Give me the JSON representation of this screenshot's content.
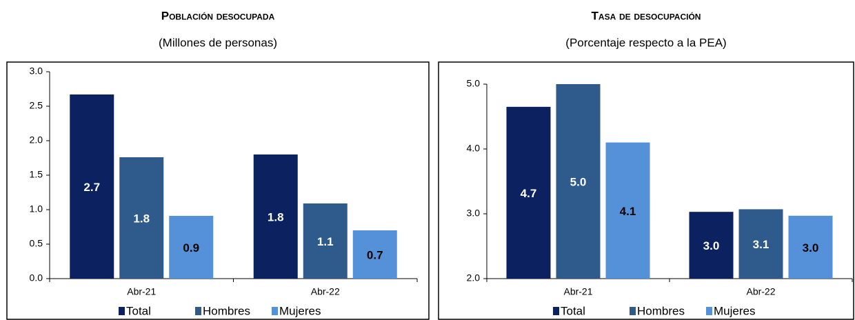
{
  "chart_data": [
    {
      "type": "bar",
      "title": "Población desocupada",
      "subtitle": "(Millones de personas)",
      "categories": [
        "Abr-21",
        "Abr-22"
      ],
      "series": [
        {
          "name": "Total",
          "color": "#0c2260",
          "values": [
            2.67,
            1.8
          ],
          "value_labels": [
            "2.7",
            "1.8"
          ]
        },
        {
          "name": "Hombres",
          "color": "#2f5a8c",
          "values": [
            1.76,
            1.09
          ],
          "value_labels": [
            "1.8",
            "1.1"
          ]
        },
        {
          "name": "Mujeres",
          "color": "#5591d8",
          "values": [
            0.91,
            0.7
          ],
          "value_labels": [
            "0.9",
            "0.7"
          ]
        }
      ],
      "ylim": [
        0,
        3
      ],
      "yticks": [
        {
          "value": 0,
          "label": "0.0"
        },
        0.5,
        {
          "value": 1,
          "label": "1.0"
        },
        1.5,
        {
          "value": 2,
          "label": "2.0"
        },
        2.5,
        {
          "value": 3,
          "label": "3.0"
        }
      ],
      "grid": false
    },
    {
      "type": "bar",
      "title": "Tasa de desocupación",
      "subtitle": "(Porcentaje respecto a la PEA)",
      "categories": [
        "Abr-21",
        "Abr-22"
      ],
      "series": [
        {
          "name": "Total",
          "color": "#0c2260",
          "values": [
            4.65,
            3.03
          ],
          "value_labels": [
            "4.7",
            "3.0"
          ]
        },
        {
          "name": "Hombres",
          "color": "#2f5a8c",
          "values": [
            5.0,
            3.07
          ],
          "value_labels": [
            "5.0",
            "3.1"
          ]
        },
        {
          "name": "Mujeres",
          "color": "#5591d8",
          "values": [
            4.1,
            2.97
          ],
          "value_labels": [
            "4.1",
            "3.0"
          ]
        }
      ],
      "ylim": [
        2,
        5
      ],
      "yticks": [
        {
          "value": 2,
          "label": "2.0"
        },
        {
          "value": 3,
          "label": "3.0"
        },
        {
          "value": 4,
          "label": "4.0"
        },
        {
          "value": 5,
          "label": "5.0"
        }
      ],
      "grid": false
    }
  ]
}
